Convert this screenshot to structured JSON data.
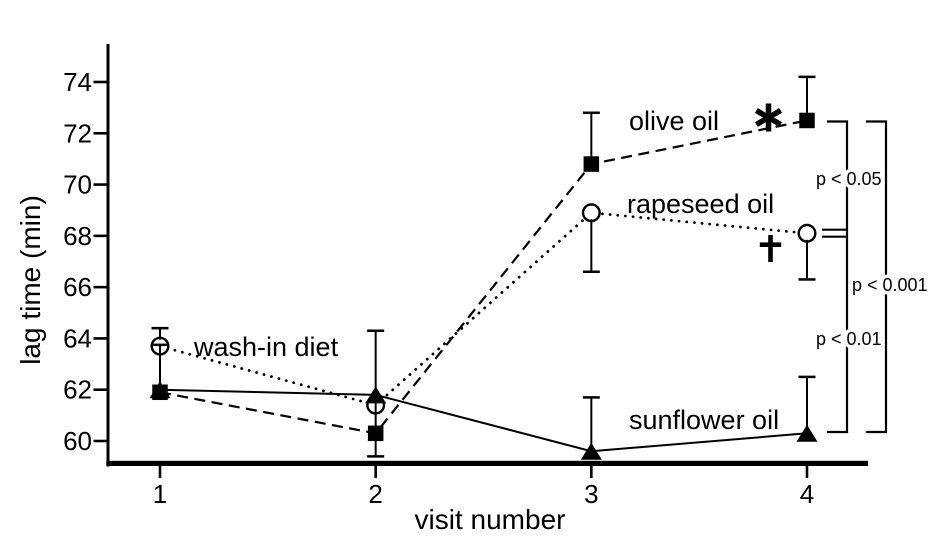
{
  "figure": {
    "background_color": "#ffffff",
    "ink_color": "#000000"
  },
  "chart_data": {
    "type": "line",
    "title": "",
    "xlabel": "visit number",
    "ylabel": "lag time (min)",
    "x": [
      1,
      2,
      3,
      4
    ],
    "x_ticks": [
      "1",
      "2",
      "3",
      "4"
    ],
    "y_ticks": [
      "60",
      "62",
      "64",
      "66",
      "68",
      "70",
      "72",
      "74"
    ],
    "y_range": [
      59.0,
      75.5
    ],
    "grid": false,
    "legend_position": "inline-labels",
    "series": [
      {
        "name": "olive oil",
        "marker": "filled-square",
        "line_style": "dashed",
        "values": [
          61.9,
          60.3,
          70.8,
          72.5
        ],
        "err_hi": [
          null,
          null,
          72.8,
          74.2
        ],
        "err_lo": [
          null,
          59.4,
          null,
          null
        ]
      },
      {
        "name": "rapeseed oil",
        "marker": "open-circle",
        "line_style": "dotted",
        "values": [
          63.7,
          61.4,
          68.9,
          68.1
        ],
        "err_hi": [
          64.4,
          null,
          null,
          null
        ],
        "err_lo": [
          null,
          null,
          66.6,
          66.3
        ]
      },
      {
        "name": "sunflower oil",
        "marker": "filled-triangle",
        "line_style": "solid",
        "values": [
          62.0,
          61.8,
          59.6,
          60.3
        ],
        "err_hi": [
          63.75,
          64.3,
          61.7,
          62.5
        ],
        "err_lo": [
          null,
          null,
          null,
          null
        ]
      }
    ],
    "annotations": [
      {
        "id": "wash-in",
        "text": "wash-in diet"
      },
      {
        "id": "olive-label",
        "text": "olive oil"
      },
      {
        "id": "rapeseed-label",
        "text": "rapeseed oil"
      },
      {
        "id": "sunflower-label",
        "text": "sunflower oil"
      },
      {
        "id": "asterisk",
        "text": "*"
      },
      {
        "id": "dagger",
        "text": "†"
      }
    ],
    "significance": [
      {
        "label": "p < 0.05",
        "between": [
          "olive oil",
          "rapeseed oil"
        ],
        "bracket": "inner"
      },
      {
        "label": "p < 0.001",
        "between": [
          "olive oil",
          "sunflower oil"
        ],
        "bracket": "outer"
      },
      {
        "label": "p < 0.01",
        "between": [
          "rapeseed oil",
          "sunflower oil"
        ],
        "bracket": "inner"
      }
    ]
  }
}
